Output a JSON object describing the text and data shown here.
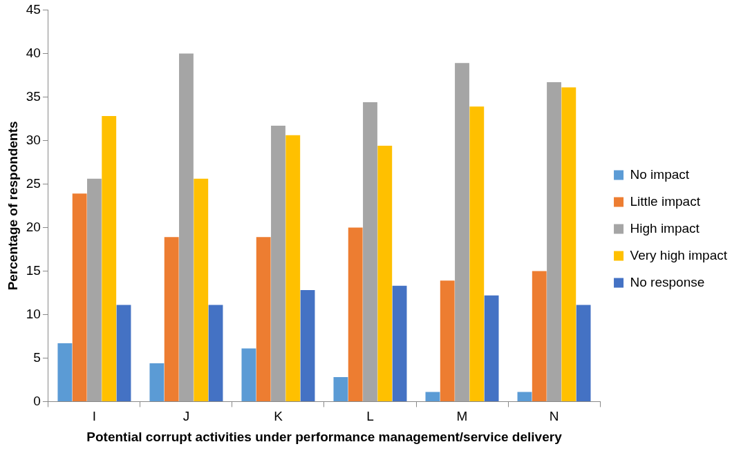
{
  "chart_data": {
    "type": "bar",
    "xlabel": "Potential corrupt activities under performance management/service delivery",
    "ylabel": "Percentage of respondents",
    "categories": [
      "I",
      "J",
      "K",
      "L",
      "M",
      "N"
    ],
    "series": [
      {
        "name": "No impact",
        "color": "#5b9bd5",
        "values": [
          6.7,
          4.4,
          6.1,
          2.8,
          1.1,
          1.1
        ]
      },
      {
        "name": "Little impact",
        "color": "#ed7d31",
        "values": [
          23.9,
          18.9,
          18.9,
          20.0,
          13.9,
          15.0
        ]
      },
      {
        "name": "High impact",
        "color": "#a5a5a5",
        "values": [
          25.6,
          40.0,
          31.7,
          34.4,
          38.9,
          36.7
        ]
      },
      {
        "name": "Very high impact",
        "color": "#ffc000",
        "values": [
          32.8,
          25.6,
          30.6,
          29.4,
          33.9,
          36.1
        ]
      },
      {
        "name": "No response",
        "color": "#4472c4",
        "values": [
          11.1,
          11.1,
          12.8,
          13.3,
          12.2,
          11.1
        ]
      }
    ],
    "ylim": [
      0,
      45
    ],
    "yticks": [
      0,
      5,
      10,
      15,
      20,
      25,
      30,
      35,
      40,
      45
    ],
    "grid": false,
    "legend": "right"
  }
}
